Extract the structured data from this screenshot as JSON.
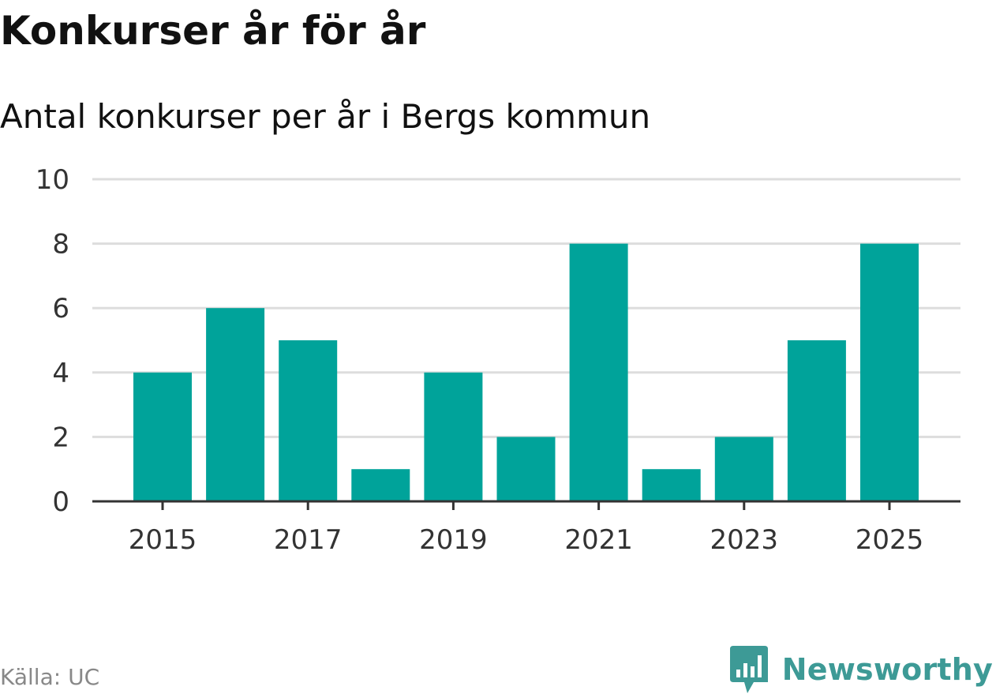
{
  "header": {
    "title": "Konkurser år för år",
    "subtitle": "Antal konkurser per år i Bergs kommun"
  },
  "footer": {
    "source": "Källa: UC",
    "brand": "Newsworthy",
    "brand_icon": "newsworthy-logo-icon"
  },
  "colors": {
    "bar": "#00a39a",
    "grid": "#dddddd",
    "axis": "#333333",
    "brand": "#3d9a96"
  },
  "chart_data": {
    "type": "bar",
    "title": "Konkurser år för år",
    "subtitle": "Antal konkurser per år i Bergs kommun",
    "xlabel": "",
    "ylabel": "",
    "categories": [
      "2015",
      "2016",
      "2017",
      "2018",
      "2019",
      "2020",
      "2021",
      "2022",
      "2023",
      "2024",
      "2025"
    ],
    "values": [
      4,
      6,
      5,
      1,
      4,
      2,
      8,
      1,
      2,
      5,
      8
    ],
    "x_tick_labels": [
      "2015",
      "2017",
      "2019",
      "2021",
      "2023",
      "2025"
    ],
    "y_ticks": [
      0,
      2,
      4,
      6,
      8,
      10
    ],
    "ylim": [
      0,
      10
    ],
    "grid": true,
    "legend": "none"
  }
}
